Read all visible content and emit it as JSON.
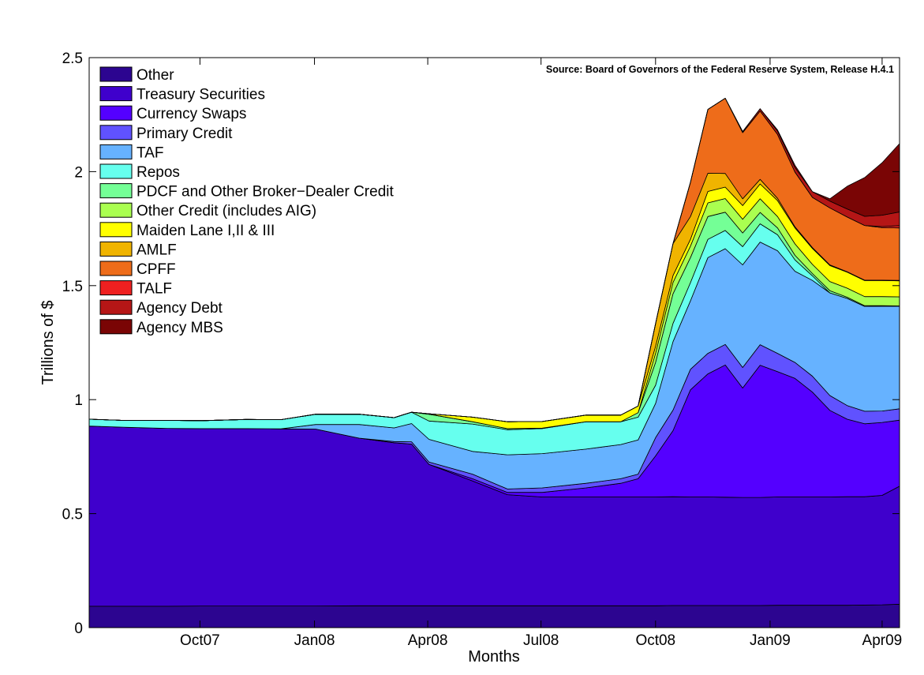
{
  "chart_data": {
    "type": "area",
    "stacked": true,
    "source": "Source: Board of Governors of the Federal Reserve System, Release H.4.1",
    "xlabel": "Months",
    "ylabel": "Trillions of $",
    "ylim": [
      0,
      2.5
    ],
    "yticks": [
      "0",
      "0.5",
      "1",
      "1.5",
      "2",
      "2.5"
    ],
    "xticks": [
      "Oct07",
      "Jan08",
      "Apr08",
      "Jul08",
      "Oct08",
      "Jan09",
      "Apr09"
    ],
    "legend_position": "top-left",
    "grid": false,
    "x": [
      "2007-07-04",
      "2007-08-01",
      "2007-09-05",
      "2007-10-03",
      "2007-11-07",
      "2007-12-05",
      "2008-01-02",
      "2008-02-06",
      "2008-03-05",
      "2008-03-19",
      "2008-04-02",
      "2008-05-07",
      "2008-06-04",
      "2008-07-02",
      "2008-08-06",
      "2008-09-03",
      "2008-09-17",
      "2008-10-01",
      "2008-10-15",
      "2008-10-29",
      "2008-11-12",
      "2008-11-26",
      "2008-12-10",
      "2008-12-24",
      "2009-01-07",
      "2009-01-21",
      "2009-02-04",
      "2009-02-18",
      "2009-03-04",
      "2009-03-18",
      "2009-04-01",
      "2009-04-15"
    ],
    "series": [
      {
        "name": "Other",
        "color": "#2c0590",
        "values": [
          0.094,
          0.094,
          0.094,
          0.095,
          0.095,
          0.095,
          0.095,
          0.096,
          0.096,
          0.096,
          0.096,
          0.096,
          0.096,
          0.096,
          0.096,
          0.096,
          0.096,
          0.096,
          0.097,
          0.097,
          0.097,
          0.097,
          0.097,
          0.097,
          0.098,
          0.098,
          0.098,
          0.098,
          0.098,
          0.099,
          0.1,
          0.103
        ]
      },
      {
        "name": "Treasury Securities",
        "color": "#3f00cc",
        "values": [
          0.79,
          0.785,
          0.78,
          0.778,
          0.778,
          0.777,
          0.776,
          0.735,
          0.715,
          0.709,
          0.62,
          0.547,
          0.487,
          0.477,
          0.477,
          0.477,
          0.477,
          0.477,
          0.477,
          0.476,
          0.476,
          0.475,
          0.474,
          0.474,
          0.475,
          0.475,
          0.475,
          0.475,
          0.476,
          0.475,
          0.48,
          0.517
        ]
      },
      {
        "name": "Currency Swaps",
        "color": "#5400ff",
        "values": [
          0,
          0,
          0,
          0,
          0,
          0,
          0,
          0,
          0,
          0,
          0,
          0.01,
          0.01,
          0.02,
          0.04,
          0.06,
          0.08,
          0.18,
          0.29,
          0.47,
          0.54,
          0.58,
          0.48,
          0.58,
          0.55,
          0.52,
          0.46,
          0.38,
          0.34,
          0.32,
          0.32,
          0.29
        ]
      },
      {
        "name": "Primary Credit",
        "color": "#6052ff",
        "values": [
          0,
          0,
          0,
          0,
          0,
          0,
          0,
          0,
          0.005,
          0.01,
          0.01,
          0.02,
          0.015,
          0.02,
          0.02,
          0.02,
          0.02,
          0.08,
          0.09,
          0.09,
          0.09,
          0.09,
          0.09,
          0.09,
          0.08,
          0.07,
          0.07,
          0.065,
          0.06,
          0.055,
          0.05,
          0.05
        ]
      },
      {
        "name": "TAF",
        "color": "#66b2ff",
        "values": [
          0,
          0,
          0,
          0,
          0,
          0,
          0.02,
          0.06,
          0.06,
          0.08,
          0.1,
          0.1,
          0.15,
          0.15,
          0.15,
          0.15,
          0.15,
          0.15,
          0.3,
          0.3,
          0.42,
          0.42,
          0.45,
          0.45,
          0.45,
          0.4,
          0.42,
          0.45,
          0.47,
          0.46,
          0.46,
          0.45
        ]
      },
      {
        "name": "Repos",
        "color": "#66ffee",
        "values": [
          0.03,
          0.03,
          0.035,
          0.035,
          0.04,
          0.04,
          0.045,
          0.045,
          0.045,
          0.05,
          0.08,
          0.12,
          0.11,
          0.11,
          0.12,
          0.1,
          0.1,
          0.08,
          0.08,
          0.08,
          0.08,
          0.08,
          0.08,
          0.08,
          0.07,
          0.05,
          0.02,
          0,
          0,
          0,
          0,
          0
        ]
      },
      {
        "name": "PDCF and Other Broker−Dealer Credit",
        "color": "#74ff96",
        "values": [
          0,
          0,
          0,
          0,
          0,
          0,
          0,
          0,
          0,
          0,
          0.03,
          0.01,
          0.005,
          0.002,
          0,
          0,
          0.02,
          0.1,
          0.13,
          0.11,
          0.1,
          0.08,
          0.06,
          0.05,
          0.03,
          0.02,
          0.01,
          0.01,
          0.005,
          0.003,
          0.002,
          0.001
        ]
      },
      {
        "name": "Other Credit (includes AIG)",
        "color": "#aaff50",
        "values": [
          0,
          0,
          0,
          0,
          0,
          0,
          0,
          0,
          0,
          0,
          0,
          0,
          0,
          0,
          0,
          0,
          0,
          0.04,
          0.05,
          0.05,
          0.06,
          0.06,
          0.06,
          0.06,
          0.05,
          0.05,
          0.04,
          0.04,
          0.04,
          0.04,
          0.04,
          0.04
        ]
      },
      {
        "name": "Maiden Lane I,II & III",
        "color": "#ffff00",
        "values": [
          0,
          0,
          0,
          0,
          0,
          0,
          0,
          0,
          0,
          0,
          0.002,
          0.02,
          0.03,
          0.029,
          0.029,
          0.029,
          0.029,
          0.03,
          0.03,
          0.03,
          0.05,
          0.05,
          0.06,
          0.065,
          0.07,
          0.07,
          0.07,
          0.07,
          0.07,
          0.07,
          0.07,
          0.07
        ]
      },
      {
        "name": "AMLF",
        "color": "#f0b400",
        "values": [
          0,
          0,
          0,
          0,
          0,
          0,
          0,
          0,
          0,
          0,
          0,
          0,
          0,
          0,
          0,
          0,
          0,
          0.1,
          0.14,
          0.1,
          0.08,
          0.06,
          0.03,
          0.02,
          0.01,
          0.005,
          0.004,
          0.003,
          0.002,
          0.002,
          0.002,
          0.002
        ]
      },
      {
        "name": "CPFF",
        "color": "#ee6c1a",
        "values": [
          0,
          0,
          0,
          0,
          0,
          0,
          0,
          0,
          0,
          0,
          0,
          0,
          0,
          0,
          0,
          0,
          0,
          0,
          0,
          0.15,
          0.28,
          0.33,
          0.29,
          0.3,
          0.28,
          0.24,
          0.22,
          0.25,
          0.24,
          0.24,
          0.23,
          0.23
        ]
      },
      {
        "name": "TALF",
        "color": "#ef2020",
        "values": [
          0,
          0,
          0,
          0,
          0,
          0,
          0,
          0,
          0,
          0,
          0,
          0,
          0,
          0,
          0,
          0,
          0,
          0,
          0,
          0,
          0,
          0,
          0,
          0,
          0,
          0,
          0,
          0,
          0,
          0,
          0.005,
          0.01
        ]
      },
      {
        "name": "Agency Debt",
        "color": "#b51616",
        "values": [
          0,
          0,
          0,
          0,
          0,
          0,
          0,
          0,
          0,
          0,
          0,
          0,
          0,
          0,
          0,
          0,
          0,
          0,
          0,
          0,
          0,
          0,
          0.005,
          0.01,
          0.015,
          0.02,
          0.025,
          0.03,
          0.035,
          0.04,
          0.05,
          0.06
        ]
      },
      {
        "name": "Agency MBS",
        "color": "#7a0505",
        "values": [
          0,
          0,
          0,
          0,
          0,
          0,
          0,
          0,
          0,
          0,
          0,
          0,
          0,
          0,
          0,
          0,
          0,
          0,
          0,
          0,
          0,
          0,
          0,
          0,
          0.005,
          0.01,
          0,
          0.01,
          0.1,
          0.17,
          0.23,
          0.3
        ]
      }
    ]
  }
}
